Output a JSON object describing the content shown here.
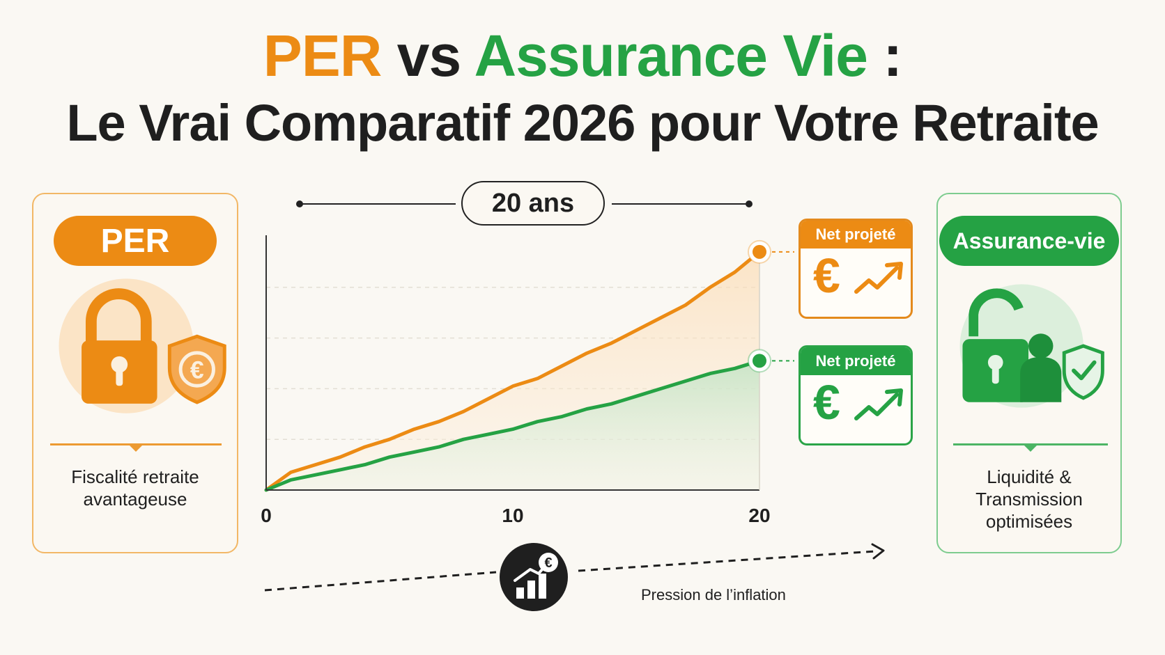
{
  "title": {
    "per": "PER",
    "vs": "vs",
    "assurance_vie": "Assurance Vie",
    "colon": ":",
    "subtitle": "Le Vrai Comparatif 2026 pour Votre Retraite"
  },
  "left_panel": {
    "badge": "PER",
    "icon": "lock-euro-shield-icon",
    "caption_line1": "Fiscalité retraite",
    "caption_line2": "avantageuse"
  },
  "right_panel": {
    "badge": "Assurance-vie",
    "icon": "open-lock-person-check-shield-icon",
    "caption_line1": "Liquidité &",
    "caption_line2": "Transmission",
    "caption_line3": "optimisées"
  },
  "duration_label": "20 ans",
  "cards": {
    "orange": {
      "header": "Net projeté",
      "symbol": "€",
      "icon": "trend-up-icon"
    },
    "green": {
      "header": "Net projeté",
      "symbol": "€",
      "icon": "trend-up-icon"
    }
  },
  "inflation": {
    "icon": "bar-chart-euro-icon",
    "label": "Pression de l’inflation"
  },
  "colors": {
    "per": "#ec8b14",
    "assurance_vie": "#25a244",
    "text": "#1f1f1f",
    "background": "#faf8f3"
  },
  "chart_data": {
    "type": "area",
    "x_ticks": [
      "0",
      "10",
      "20"
    ],
    "x": [
      0,
      1,
      2,
      3,
      4,
      5,
      6,
      7,
      8,
      9,
      10,
      11,
      12,
      13,
      14,
      15,
      16,
      17,
      18,
      19,
      20
    ],
    "xlim": [
      0,
      20
    ],
    "ylim": [
      0,
      100
    ],
    "grid": true,
    "series": [
      {
        "key": "per",
        "color": "#ec8b14",
        "values": [
          0,
          7,
          10,
          13,
          17,
          20,
          24,
          27,
          31,
          36,
          41,
          44,
          49,
          54,
          58,
          63,
          68,
          73,
          80,
          86,
          94
        ]
      },
      {
        "key": "assurance_vie",
        "color": "#25a244",
        "values": [
          0,
          4,
          6,
          8,
          10,
          13,
          15,
          17,
          20,
          22,
          24,
          27,
          29,
          32,
          34,
          37,
          40,
          43,
          46,
          48,
          51
        ]
      }
    ]
  }
}
